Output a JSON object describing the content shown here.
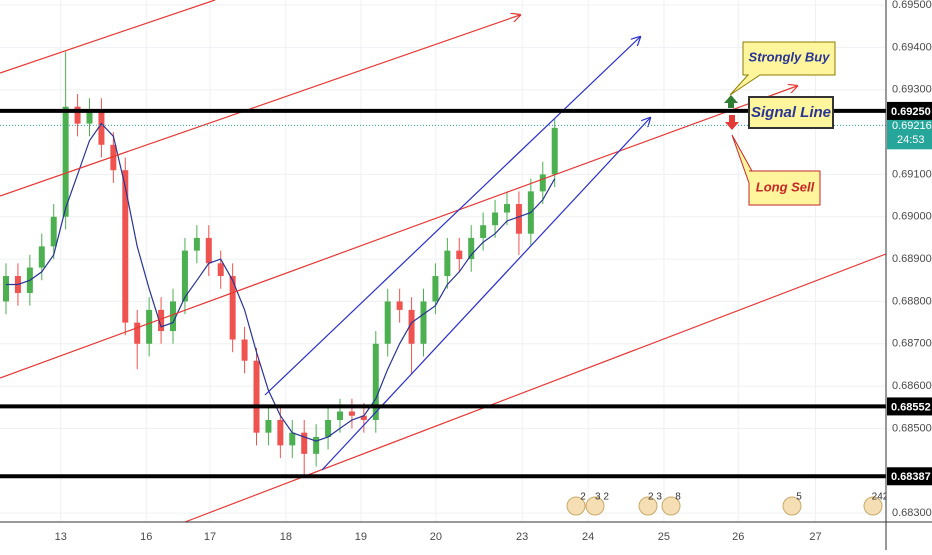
{
  "chart_data": {
    "type": "candlestick",
    "x": [
      0.08,
      0.239,
      0.398,
      0.557,
      0.716,
      0.875,
      1.034,
      1.193,
      1.352,
      1.511,
      1.67,
      1.829,
      1.988,
      2.147,
      2.306,
      2.465,
      2.624,
      2.783,
      2.942,
      3.101,
      3.26,
      3.419,
      3.578,
      3.737,
      3.896,
      4.055,
      4.214,
      4.373,
      4.532,
      4.691,
      4.85,
      5.009,
      5.168,
      5.327,
      5.486,
      5.645,
      5.804,
      5.963,
      6.122,
      6.281,
      6.44,
      6.599,
      6.758,
      6.917,
      7.076,
      7.235,
      7.394
    ],
    "open": [
      0.688,
      0.6886,
      0.6882,
      0.6888,
      0.6893,
      0.69,
      0.6926,
      0.6922,
      0.6925,
      0.6917,
      0.6911,
      0.6875,
      0.687,
      0.6878,
      0.6873,
      0.688,
      0.6892,
      0.6895,
      0.6889,
      0.6886,
      0.6871,
      0.6866,
      0.6849,
      0.6852,
      0.6846,
      0.6849,
      0.6844,
      0.6848,
      0.6852,
      0.6854,
      0.6853,
      0.6852,
      0.687,
      0.688,
      0.6878,
      0.687,
      0.688,
      0.6886,
      0.6892,
      0.689,
      0.6895,
      0.6898,
      0.6901,
      0.6903,
      0.6896,
      0.6906,
      0.691
    ],
    "high": [
      0.6889,
      0.6889,
      0.6891,
      0.6896,
      0.6903,
      0.6939,
      0.6929,
      0.6928,
      0.6928,
      0.692,
      0.6914,
      0.6878,
      0.6881,
      0.6881,
      0.6883,
      0.6895,
      0.6898,
      0.6898,
      0.6892,
      0.6889,
      0.6874,
      0.6869,
      0.6855,
      0.6855,
      0.6852,
      0.6852,
      0.6851,
      0.6855,
      0.6857,
      0.6857,
      0.6856,
      0.6873,
      0.6883,
      0.6883,
      0.6881,
      0.6883,
      0.6889,
      0.6895,
      0.6895,
      0.6898,
      0.6901,
      0.6904,
      0.6906,
      0.6906,
      0.6909,
      0.6913,
      0.6923
    ],
    "low": [
      0.6877,
      0.6879,
      0.6879,
      0.6885,
      0.689,
      0.6897,
      0.6919,
      0.6919,
      0.6914,
      0.6908,
      0.6872,
      0.6864,
      0.6867,
      0.687,
      0.687,
      0.6877,
      0.6889,
      0.6886,
      0.6883,
      0.6868,
      0.6863,
      0.6846,
      0.6846,
      0.6843,
      0.6843,
      0.6839,
      0.6841,
      0.6845,
      0.6849,
      0.685,
      0.6849,
      0.6849,
      0.6867,
      0.6875,
      0.6863,
      0.6867,
      0.6877,
      0.6883,
      0.6887,
      0.6887,
      0.6892,
      0.6895,
      0.6898,
      0.6891,
      0.6893,
      0.6903,
      0.6907
    ],
    "close": [
      0.6886,
      0.6882,
      0.6888,
      0.6893,
      0.69,
      0.6926,
      0.6922,
      0.6925,
      0.6917,
      0.6911,
      0.6875,
      0.687,
      0.6878,
      0.6873,
      0.688,
      0.6892,
      0.6895,
      0.6889,
      0.6886,
      0.6871,
      0.6866,
      0.6849,
      0.6852,
      0.6846,
      0.6849,
      0.6844,
      0.6848,
      0.6852,
      0.6854,
      0.6853,
      0.6852,
      0.687,
      0.688,
      0.6878,
      0.687,
      0.688,
      0.6886,
      0.6892,
      0.689,
      0.6895,
      0.6898,
      0.6901,
      0.6903,
      0.6896,
      0.6906,
      0.691,
      0.6921
    ],
    "up_color": "#4caf50",
    "down_color": "#ef5350",
    "ma": {
      "color": "#283593",
      "values": [
        0.6884,
        0.6884,
        0.6885,
        0.6887,
        0.6891,
        0.6902,
        0.691,
        0.6918,
        0.6922,
        0.6919,
        0.6907,
        0.6893,
        0.6883,
        0.6874,
        0.6875,
        0.6881,
        0.6885,
        0.6889,
        0.689,
        0.6885,
        0.6878,
        0.6868,
        0.6859,
        0.6853,
        0.6849,
        0.6848,
        0.6847,
        0.6848,
        0.685,
        0.6852,
        0.6853,
        0.6857,
        0.6864,
        0.687,
        0.6875,
        0.6877,
        0.6879,
        0.6884,
        0.6887,
        0.6891,
        0.6894,
        0.6896,
        0.6899,
        0.69,
        0.6901,
        0.6904,
        0.6909
      ]
    },
    "xlim": [
      0,
      11.81
    ],
    "xticks": [
      {
        "value": 0.81,
        "label": "13"
      },
      {
        "value": 1.95,
        "label": "16"
      },
      {
        "value": 2.8,
        "label": "17"
      },
      {
        "value": 3.81,
        "label": "18"
      },
      {
        "value": 4.81,
        "label": "19"
      },
      {
        "value": 5.81,
        "label": "20"
      },
      {
        "value": 6.96,
        "label": "23"
      },
      {
        "value": 7.84,
        "label": "24"
      },
      {
        "value": 8.85,
        "label": "25"
      },
      {
        "value": 9.84,
        "label": "26"
      },
      {
        "value": 10.87,
        "label": "27"
      }
    ],
    "ylim": [
      0.68279,
      0.69512
    ],
    "yticks": [
      {
        "value": 0.695,
        "label": "0.69500"
      },
      {
        "value": 0.694,
        "label": "0.69400"
      },
      {
        "value": 0.693,
        "label": "0.69300"
      },
      {
        "value": 0.691,
        "label": "0.69100"
      },
      {
        "value": 0.69,
        "label": "0.69000"
      },
      {
        "value": 0.689,
        "label": "0.68900"
      },
      {
        "value": 0.688,
        "label": "0.68800"
      },
      {
        "value": 0.687,
        "label": "0.68700"
      },
      {
        "value": 0.686,
        "label": "0.68600"
      },
      {
        "value": 0.685,
        "label": "0.68500"
      },
      {
        "value": 0.683,
        "label": "0.68300"
      }
    ],
    "grid": true,
    "levels": [
      {
        "value": 0.6925,
        "label": "0.69250"
      },
      {
        "value": 0.68552,
        "label": "0.68552"
      },
      {
        "value": 0.68387,
        "label": "0.68387"
      }
    ],
    "last_price": {
      "value": 0.69216,
      "label": "0.69216"
    },
    "countdown": "24:53",
    "annotations": [
      "Strongly Buy",
      "Signal Line",
      "Long Sell"
    ],
    "events": [
      "2",
      "3 2",
      "2 3",
      "8",
      "5",
      "242"
    ]
  }
}
